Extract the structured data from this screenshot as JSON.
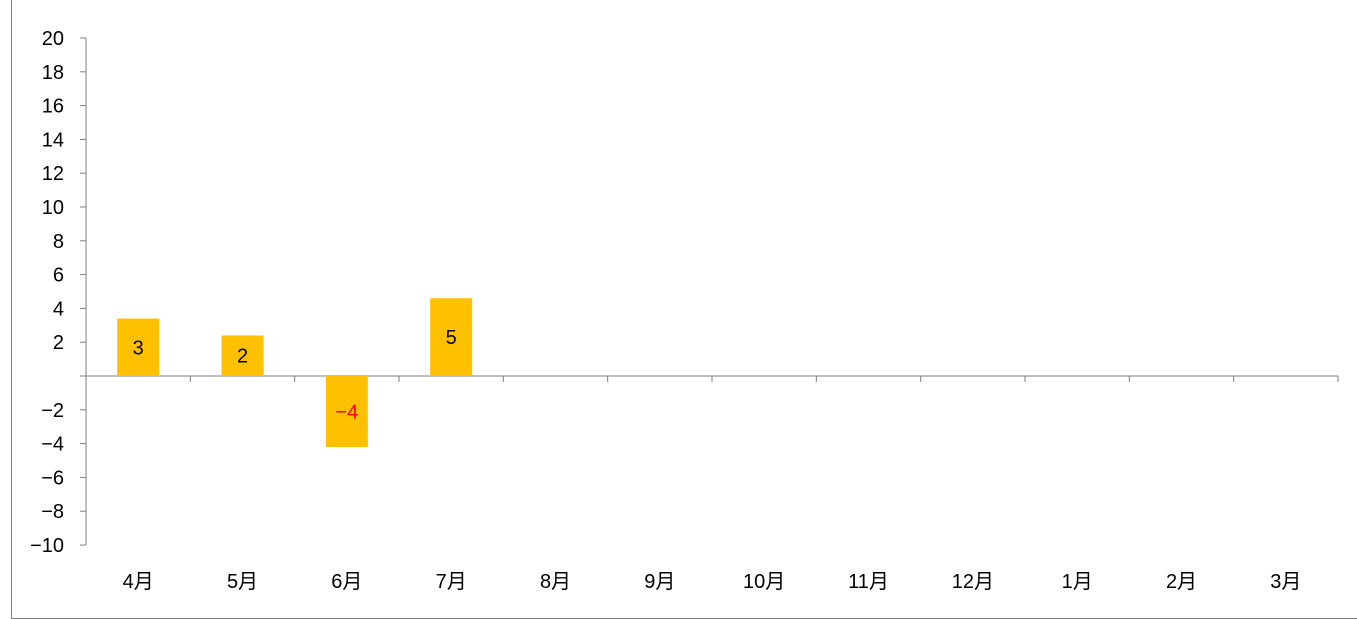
{
  "chart_data": {
    "type": "bar",
    "categories": [
      "4月",
      "5月",
      "6月",
      "7月",
      "8月",
      "9月",
      "10月",
      "11月",
      "12月",
      "1月",
      "2月",
      "3月"
    ],
    "series": [
      {
        "values": [
          3.4,
          2.4,
          -4.2,
          4.6,
          null,
          null,
          null,
          null,
          null,
          null,
          null,
          null
        ]
      }
    ],
    "data_labels": [
      "3",
      "2",
      "−4",
      "5",
      "",
      "",
      "",
      "",
      "",
      "",
      "",
      ""
    ],
    "y_tick_labels": [
      "20",
      "18",
      "16",
      "14",
      "12",
      "10",
      "8",
      "6",
      "4",
      "2",
      "",
      "−2",
      "−4",
      "−6",
      "−8",
      "−10"
    ],
    "ylim": [
      -10,
      20
    ],
    "y_step": 2,
    "grid": false,
    "legend": "none",
    "colors": {
      "bar": "#FFC000",
      "axis": "#7f7f7f",
      "label_positive": "#000000",
      "label_negative": "#FF0000",
      "tick_negative": "#FF0000"
    }
  }
}
